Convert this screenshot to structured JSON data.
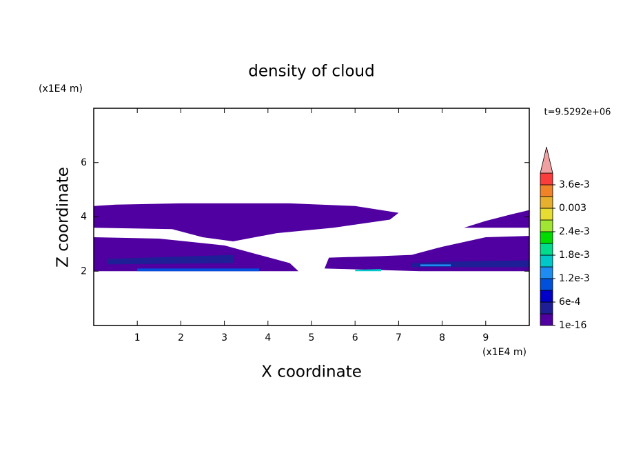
{
  "chart_data": {
    "type": "contour",
    "title": "density of cloud",
    "xlabel": "X coordinate",
    "ylabel": "Z coordinate",
    "xunit": "(x1E4 m)",
    "yunit": "(x1E4 m)",
    "annotation": "t=9.5292e+06",
    "xlim": [
      0,
      10
    ],
    "ylim": [
      0,
      8
    ],
    "xticks": [
      1,
      2,
      3,
      4,
      5,
      6,
      7,
      8,
      9
    ],
    "yticks": [
      2,
      4,
      6
    ],
    "fields": [
      {
        "color": "#5000a0",
        "x": [
          0,
          0.5,
          2,
          4.5,
          6,
          7,
          6.8,
          5.5,
          4.2,
          3.2,
          2.5,
          1.8,
          0
        ],
        "y": [
          4.4,
          4.45,
          4.5,
          4.5,
          4.4,
          4.15,
          3.9,
          3.6,
          3.4,
          3.1,
          3.25,
          3.55,
          3.6
        ]
      },
      {
        "color": "#5000a0",
        "x": [
          8.5,
          9,
          9.6,
          10,
          10,
          9
        ],
        "y": [
          3.6,
          3.85,
          4.1,
          4.25,
          3.6,
          3.6
        ]
      },
      {
        "color": "#5000a0",
        "x": [
          0,
          1.5,
          3,
          3.8,
          4.5,
          4.7,
          3,
          0
        ],
        "y": [
          3.25,
          3.2,
          2.95,
          2.6,
          2.3,
          2.0,
          2.0,
          2.0
        ]
      },
      {
        "color": "#5000a0",
        "x": [
          5.4,
          6.5,
          7.3,
          8,
          9,
          10,
          10,
          7.5,
          5.3
        ],
        "y": [
          2.5,
          2.55,
          2.6,
          2.9,
          3.25,
          3.3,
          2.0,
          2.0,
          2.1
        ]
      },
      {
        "color": "#1e1e96",
        "x": [
          0.3,
          3.2,
          3.2,
          0.3
        ],
        "y": [
          2.45,
          2.6,
          2.3,
          2.25
        ]
      },
      {
        "color": "#0050dc",
        "x": [
          1,
          3.8,
          3.8,
          1
        ],
        "y": [
          2.1,
          2.1,
          2.0,
          2.0
        ]
      },
      {
        "color": "#1e1e96",
        "x": [
          7.3,
          8,
          10,
          10,
          7.3
        ],
        "y": [
          2.3,
          2.35,
          2.4,
          2.15,
          2.15
        ]
      },
      {
        "color": "#00c8c8",
        "x": [
          6,
          6.6,
          6.6,
          6
        ],
        "y": [
          2.05,
          2.08,
          2.0,
          2.0
        ]
      },
      {
        "color": "#1e8cf0",
        "x": [
          7.5,
          8.2,
          8.2,
          7.5
        ],
        "y": [
          2.25,
          2.25,
          2.18,
          2.18
        ]
      }
    ],
    "colorbar": {
      "levels": [
        0,
        0.0003,
        0.0006,
        0.0009,
        0.0012,
        0.0015,
        0.0018,
        0.0021,
        0.0024,
        0.0027,
        0.003,
        0.0033,
        0.0036,
        0.0039
      ],
      "colors": [
        "#5000a0",
        "#1e1e96",
        "#0000c8",
        "#0050dc",
        "#1e8cf0",
        "#00c8c8",
        "#00dc8c",
        "#00dc00",
        "#a0e632",
        "#e6dc32",
        "#e6af2d",
        "#f08228",
        "#fa3c3c",
        "#f0a0a0"
      ],
      "ticks": [
        1e-16,
        {
          "value": 0.0006,
          "label": "6e-4"
        },
        {
          "value": 0.0012,
          "label": "1.2e-3"
        },
        {
          "value": 0.0018,
          "label": "1.8e-3"
        },
        {
          "value": 0.0024,
          "label": "2.4e-3"
        },
        0.003,
        {
          "value": 0.0036,
          "label": "3.6e-3"
        }
      ]
    }
  }
}
